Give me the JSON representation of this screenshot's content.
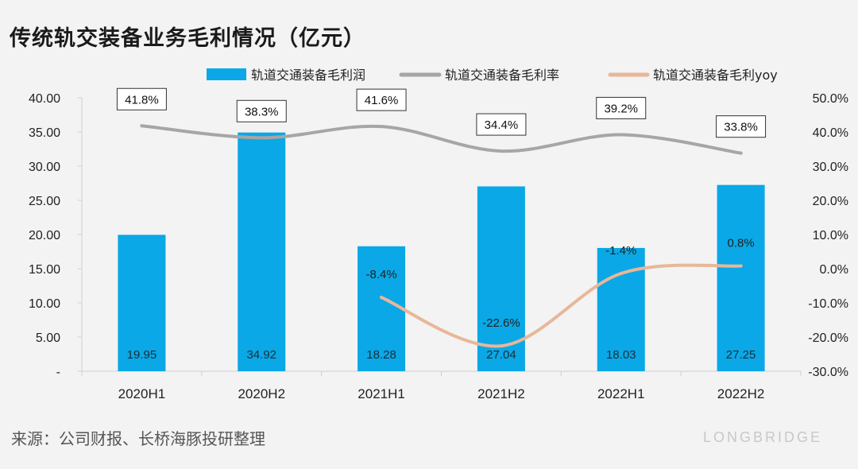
{
  "title": "传统轨交装备业务毛利情况（亿元）",
  "source": "来源：公司财报、长桥海豚投研整理",
  "brand": "LONGBRIDGE",
  "colors": {
    "bar": "#0aa8e6",
    "rate_line": "#a6a6a6",
    "yoy_line": "#e8b799"
  },
  "chart_data": {
    "type": "bar",
    "categories": [
      "2020H1",
      "2020H2",
      "2021H1",
      "2021H2",
      "2022H1",
      "2022H2"
    ],
    "series": [
      {
        "name": "轨道交通装备毛利润",
        "type": "bar",
        "axis": "left",
        "values": [
          19.95,
          34.92,
          18.28,
          27.04,
          18.03,
          27.25
        ],
        "labels": [
          "19.95",
          "34.92",
          "18.28",
          "27.04",
          "18.03",
          "27.25"
        ]
      },
      {
        "name": "轨道交通装备毛利率",
        "type": "line",
        "axis": "right",
        "values": [
          41.8,
          38.3,
          41.6,
          34.4,
          39.2,
          33.8
        ],
        "labels": [
          "41.8%",
          "38.3%",
          "41.6%",
          "34.4%",
          "39.2%",
          "33.8%"
        ]
      },
      {
        "name": "轨道交通装备毛利yoy",
        "type": "line",
        "axis": "right",
        "values": [
          null,
          null,
          -8.4,
          -22.6,
          -1.4,
          0.8
        ],
        "labels": [
          "",
          "",
          "-8.4%",
          "-22.6%",
          "-1.4%",
          "0.8%"
        ]
      }
    ],
    "y_left": {
      "ylim": [
        0,
        40
      ],
      "ticks": [
        "-",
        "5.00",
        "10.00",
        "15.00",
        "20.00",
        "25.00",
        "30.00",
        "35.00",
        "40.00"
      ]
    },
    "y_right": {
      "ylim": [
        -30,
        50
      ],
      "ticks": [
        "-30.0%",
        "-20.0%",
        "-10.0%",
        "0.0%",
        "10.0%",
        "20.0%",
        "30.0%",
        "40.0%",
        "50.0%"
      ]
    },
    "legend_position": "top",
    "grid": false
  }
}
